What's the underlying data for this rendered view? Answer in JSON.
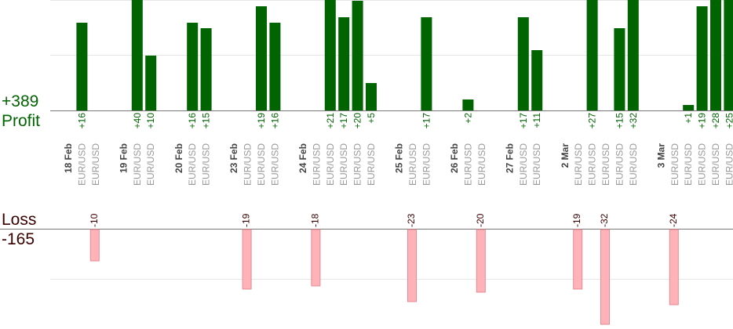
{
  "summary": {
    "profit_total": "+389",
    "profit_label": "Profit",
    "loss_label": "Loss",
    "loss_total": "-165"
  },
  "colors": {
    "profit": "#006400",
    "loss": "#ffb3b8",
    "loss_border": "#e58a92",
    "profit_text": "#006400",
    "loss_text": "#3a0000",
    "grid": "#e6e6e6"
  },
  "chart_data": {
    "type": "bar",
    "profit_ylim": [
      0,
      20
    ],
    "loss_ylim": [
      0,
      -16
    ],
    "grid": true,
    "days": [
      {
        "date": "18 Feb",
        "trades": [
          {
            "symbol": "EUR/USD",
            "result": 16
          },
          {
            "symbol": "EUR/USD",
            "result": -10
          }
        ]
      },
      {
        "date": "19 Feb",
        "trades": [
          {
            "symbol": "EUR/USD",
            "result": 40
          },
          {
            "symbol": "EUR/USD",
            "result": 10
          }
        ]
      },
      {
        "date": "20 Feb",
        "trades": [
          {
            "symbol": "EUR/USD",
            "result": 16
          },
          {
            "symbol": "EUR/USD",
            "result": 15
          }
        ]
      },
      {
        "date": "23 Feb",
        "trades": [
          {
            "symbol": "EUR/USD",
            "result": -19
          },
          {
            "symbol": "EUR/USD",
            "result": 19
          },
          {
            "symbol": "EUR/USD",
            "result": 16
          }
        ]
      },
      {
        "date": "24 Feb",
        "trades": [
          {
            "symbol": "EUR/USD",
            "result": -18
          },
          {
            "symbol": "EUR/USD",
            "result": 21
          },
          {
            "symbol": "EUR/USD",
            "result": 17
          },
          {
            "symbol": "EUR/USD",
            "result": 20
          },
          {
            "symbol": "EUR/USD",
            "result": 5
          }
        ]
      },
      {
        "date": "25 Feb",
        "trades": [
          {
            "symbol": "EUR/USD",
            "result": -23
          },
          {
            "symbol": "EUR/USD",
            "result": 17
          }
        ]
      },
      {
        "date": "26 Feb",
        "trades": [
          {
            "symbol": "EUR/USD",
            "result": 2
          },
          {
            "symbol": "EUR/USD",
            "result": -20
          }
        ]
      },
      {
        "date": "27 Feb",
        "trades": [
          {
            "symbol": "EUR/USD",
            "result": 17
          },
          {
            "symbol": "EUR/USD",
            "result": 11
          }
        ]
      },
      {
        "date": "2 Mar",
        "trades": [
          {
            "symbol": "EUR/USD",
            "result": -19
          },
          {
            "symbol": "EUR/USD",
            "result": 27
          },
          {
            "symbol": "EUR/USD",
            "result": -32
          },
          {
            "symbol": "EUR/USD",
            "result": 15
          },
          {
            "symbol": "EUR/USD",
            "result": 32
          }
        ]
      },
      {
        "date": "3 Mar",
        "trades": [
          {
            "symbol": "EUR/USD",
            "result": -24
          },
          {
            "symbol": "EUR/USD",
            "result": 1
          },
          {
            "symbol": "EUR/USD",
            "result": 19
          },
          {
            "symbol": "EUR/USD",
            "result": 28
          },
          {
            "symbol": "EUR/USD",
            "result": 25
          }
        ]
      }
    ]
  }
}
